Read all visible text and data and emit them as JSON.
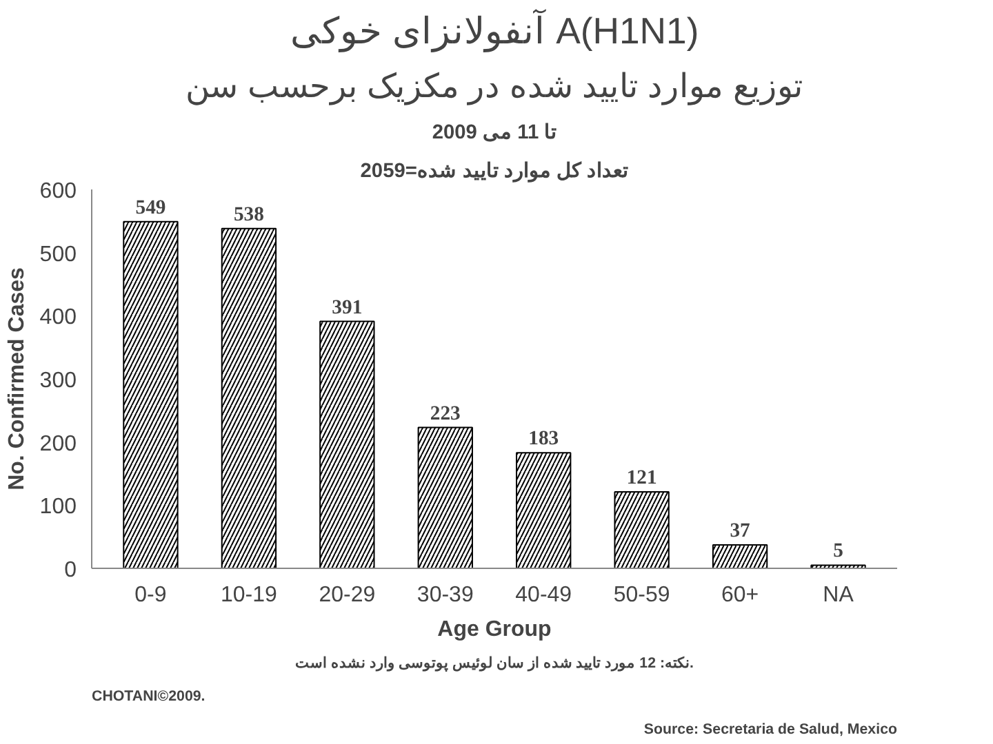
{
  "chart_data": {
    "type": "bar",
    "title": "آنفولانزای خوکی A(H1N1)",
    "subtitle": "توزیع موارد تایید شده در مکزیک برحسب سن",
    "annotations": [
      "تا 11 می 2009",
      "تعداد کل موارد تایید شده=2059",
      "نکته: 12 مورد تایید شده از سان لوئیس پوتوسی وارد نشده است.",
      "CHOTANI©2009.",
      "Source: Secretaria de Salud, Mexico"
    ],
    "xlabel": "Age Group",
    "ylabel": "No. Confirmed Cases",
    "categories": [
      "0-9",
      "10-19",
      "20-29",
      "30-39",
      "40-49",
      "50-59",
      "60+",
      "NA"
    ],
    "values": [
      549,
      538,
      391,
      223,
      183,
      121,
      37,
      5
    ],
    "color": "#ffffff",
    "ylim": [
      0,
      600
    ],
    "yticks": [
      0,
      100,
      200,
      300,
      400,
      500,
      600
    ],
    "grid": false,
    "data_labels": true
  }
}
